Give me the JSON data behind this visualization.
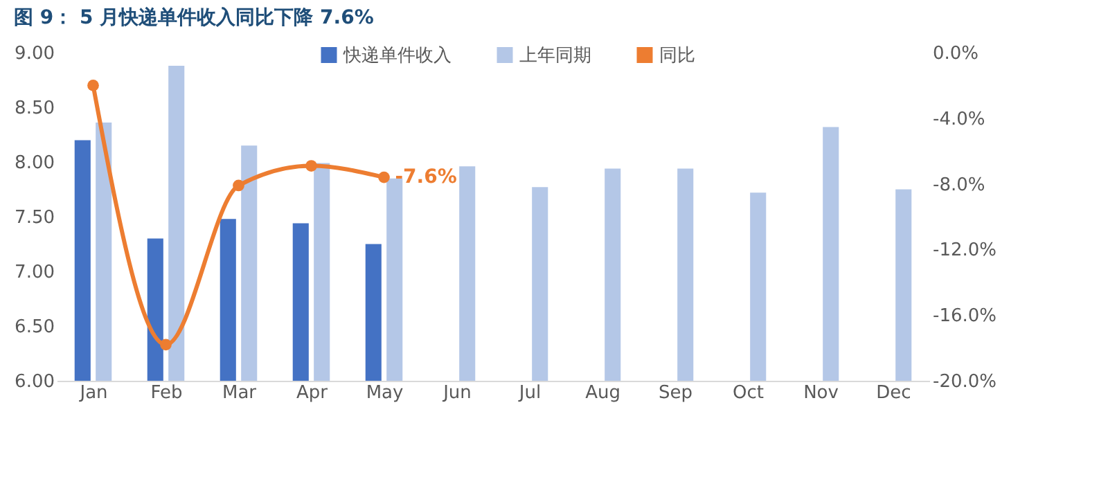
{
  "chart_data": {
    "type": "bar",
    "title": "图 9： 5 月快递单件收入同比下降 7.6%",
    "categories": [
      "Jan",
      "Feb",
      "Mar",
      "Apr",
      "May",
      "Jun",
      "Jul",
      "Aug",
      "Sep",
      "Oct",
      "Nov",
      "Dec"
    ],
    "series": [
      {
        "name": "快递单件收入",
        "color": "#4472c4",
        "values": [
          8.2,
          7.3,
          7.48,
          7.44,
          7.25,
          null,
          null,
          null,
          null,
          null,
          null,
          null
        ]
      },
      {
        "name": "上年同期",
        "color": "#b4c7e7",
        "values": [
          8.36,
          8.88,
          8.15,
          7.99,
          7.85,
          7.96,
          7.77,
          7.94,
          7.94,
          7.72,
          8.32,
          7.75
        ]
      },
      {
        "name": "同比",
        "color": "#ed7d31",
        "type": "line",
        "axis": "y2",
        "marker": "circle",
        "line_style": "solid",
        "values": [
          -2.0,
          -17.8,
          -8.1,
          -6.9,
          -7.6,
          null,
          null,
          null,
          null,
          null,
          null,
          null
        ],
        "value_labels": [
          null,
          null,
          null,
          null,
          "-7.6%",
          null,
          null,
          null,
          null,
          null,
          null,
          null
        ]
      }
    ],
    "ylim": [
      6,
      9
    ],
    "yticks": [
      {
        "value": 6,
        "label": "6.00"
      },
      {
        "value": 6.5,
        "label": "6.50"
      },
      {
        "value": 7,
        "label": "7.00"
      },
      {
        "value": 7.5,
        "label": "7.50"
      },
      {
        "value": 8,
        "label": "8.00"
      },
      {
        "value": 8.5,
        "label": "8.50"
      },
      {
        "value": 9,
        "label": "9.00"
      }
    ],
    "y2lim": [
      -20,
      0
    ],
    "y2ticks": [
      {
        "value": -20,
        "label": "-20.0%"
      },
      {
        "value": -16,
        "label": "-16.0%"
      },
      {
        "value": -12,
        "label": "-12.0%"
      },
      {
        "value": -8,
        "label": "-8.0%"
      },
      {
        "value": -4,
        "label": "-4.0%"
      },
      {
        "value": 0,
        "label": "0.0%"
      }
    ],
    "grid": false,
    "legend": "top"
  }
}
